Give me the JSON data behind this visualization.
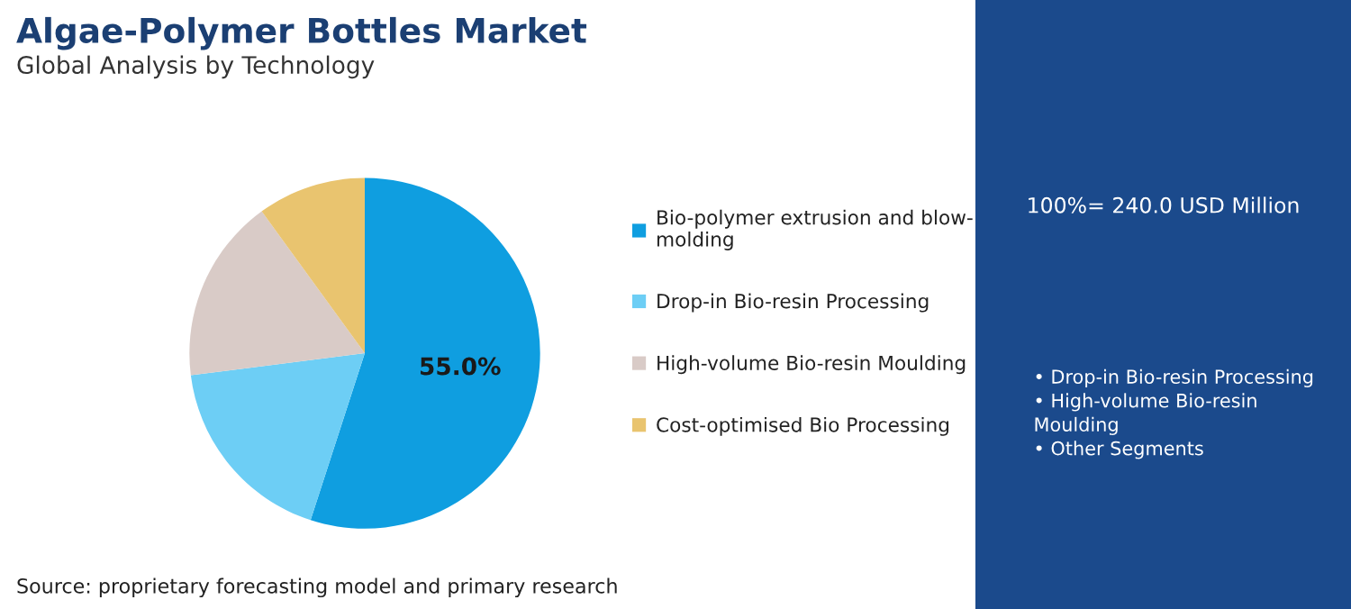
{
  "chart_data": {
    "type": "pie",
    "title": "Algae-Polymer Bottles Market",
    "subtitle": "Global Analysis by Technology",
    "categories": [
      "Bio-polymer extrusion and blow-molding",
      "Drop-in Bio-resin Processing",
      "High-volume Bio-resin Moulding",
      "Cost-optimised Bio Processing"
    ],
    "values": [
      55.0,
      18,
      17,
      10
    ],
    "colors": [
      "#0f9ee0",
      "#6dcef5",
      "#d9cbc7",
      "#e9c46f"
    ],
    "value_labels": [
      "55.0%",
      null,
      null,
      null
    ],
    "legend": "right",
    "annotations": [
      "100%= 240.0 USD Million",
      "• Drop-in Bio-resin Processing\n• High-volume Bio-resin\nMoulding\n• Other Segments",
      "Source: proprietary forecasting model and primary research"
    ]
  }
}
